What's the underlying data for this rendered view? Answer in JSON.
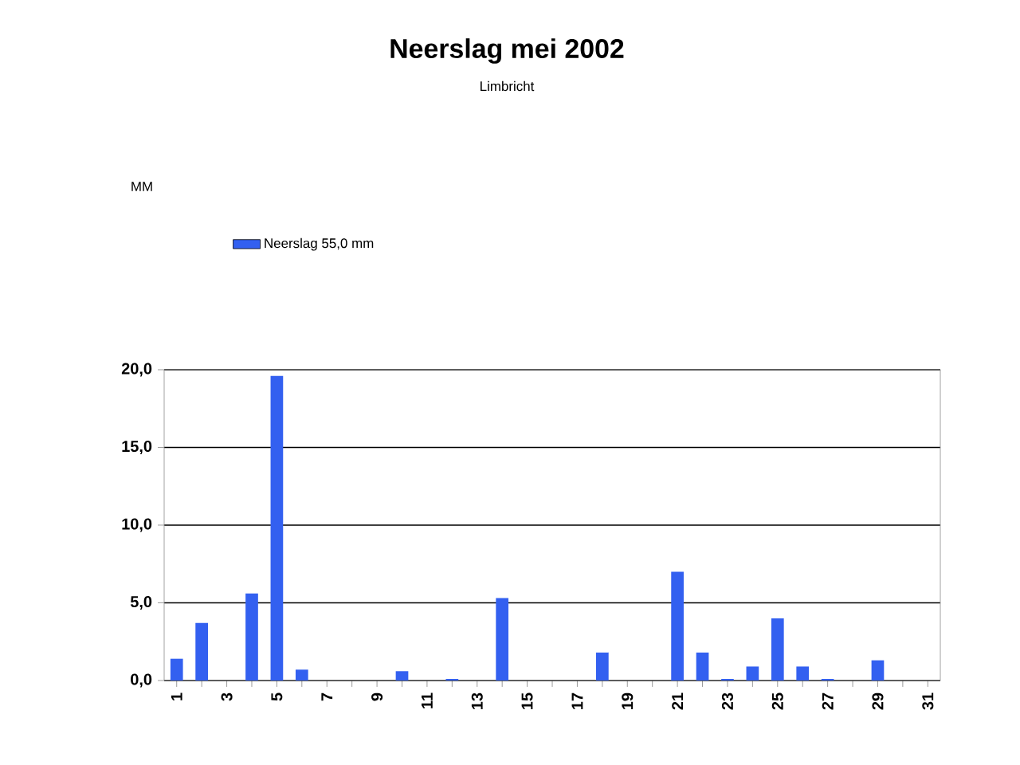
{
  "chart_data": {
    "type": "bar",
    "title": "Neerslag mei 2002",
    "subtitle": "Limbricht",
    "annotations": [
      "MM"
    ],
    "categories": [
      "1",
      null,
      "3",
      null,
      "5",
      null,
      "7",
      null,
      "9",
      null,
      "11",
      null,
      "13",
      null,
      "15",
      null,
      "17",
      null,
      "19",
      null,
      "21",
      null,
      "23",
      null,
      "25",
      null,
      "27",
      null,
      "29",
      null,
      "31"
    ],
    "series": [
      {
        "name": "Neerslag 55,0 mm",
        "color": "#3360f0",
        "values": [
          1.4,
          3.7,
          null,
          5.6,
          19.6,
          0.7,
          null,
          null,
          null,
          0.6,
          null,
          0.1,
          null,
          5.3,
          null,
          null,
          null,
          1.8,
          null,
          null,
          7.0,
          1.8,
          0.1,
          0.9,
          4.0,
          0.9,
          0.1,
          null,
          1.3,
          null,
          null
        ]
      }
    ],
    "ylim": [
      0,
      20
    ],
    "yticks": [
      {
        "value": 0,
        "label": "0,0"
      },
      {
        "value": 5,
        "label": "5,0"
      },
      {
        "value": 10,
        "label": "10,0"
      },
      {
        "value": 15,
        "label": "15,0"
      },
      {
        "value": 20,
        "label": "20,0"
      }
    ],
    "grid": "y",
    "legend": "top left"
  }
}
